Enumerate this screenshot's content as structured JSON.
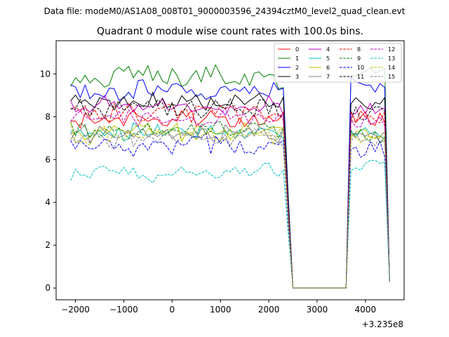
{
  "suptitle": "Data file: modeM0/AS1A08_008T01_9000003596_24394cztM0_level2_quad_clean.evt",
  "chart_data": {
    "type": "line",
    "title": "Quadrant 0 module wise count rates with 100.0s bins.",
    "xlabel": "",
    "ylabel": "",
    "x_offset_label": "+3.235e8",
    "xlim": [
      -2400,
      4800
    ],
    "ylim": [
      -0.55,
      11.55
    ],
    "xticks": [
      -2000,
      -1000,
      0,
      1000,
      2000,
      3000,
      4000
    ],
    "xtick_labels": [
      "−2000",
      "−1000",
      "0",
      "1000",
      "2000",
      "3000",
      "4000"
    ],
    "yticks": [
      0,
      2,
      4,
      6,
      8,
      10
    ],
    "ytick_labels": [
      "0",
      "2",
      "4",
      "6",
      "8",
      "10"
    ],
    "grid": false,
    "legend_position": "top-right",
    "legend_columns": 4,
    "x": {
      "seg1": [
        -2100,
        2300,
        100
      ],
      "drop": [
        2400,
        2500
      ],
      "gap": [
        2500,
        3600
      ],
      "seg2": [
        3700,
        4500,
        100
      ]
    },
    "series": [
      {
        "name": "0",
        "color": "#ff0000",
        "dash": "solid",
        "level": 7.9,
        "amp": 0.4,
        "seed": 0,
        "high": 8.0,
        "drop_mid": 3.5,
        "end": 0.3
      },
      {
        "name": "1",
        "color": "#008000",
        "dash": "solid",
        "level": 9.8,
        "amp": 0.5,
        "seed": 1,
        "high": 10.0,
        "drop_mid": 4.5,
        "end": 0.3
      },
      {
        "name": "2",
        "color": "#0000ff",
        "dash": "solid",
        "level": 9.2,
        "amp": 0.4,
        "seed": 2,
        "high": 9.5,
        "drop_mid": 4.2,
        "end": 0.3
      },
      {
        "name": "3",
        "color": "#000000",
        "dash": "solid",
        "level": 8.7,
        "amp": 0.35,
        "seed": 3,
        "high": 8.6,
        "drop_mid": 4.0,
        "end": 0.3
      },
      {
        "name": "4",
        "color": "#bf00bf",
        "dash": "solid",
        "level": 8.5,
        "amp": 0.35,
        "seed": 4,
        "high": 8.4,
        "drop_mid": 3.8,
        "end": 0.3
      },
      {
        "name": "5",
        "color": "#00bfbf",
        "dash": "solid",
        "level": 7.3,
        "amp": 0.3,
        "seed": 5,
        "high": 7.2,
        "drop_mid": 3.4,
        "end": 0.3
      },
      {
        "name": "6",
        "color": "#bfbf00",
        "dash": "solid",
        "level": 7.3,
        "amp": 0.3,
        "seed": 6,
        "high": 7.2,
        "drop_mid": 3.4,
        "end": 0.3
      },
      {
        "name": "7",
        "color": "#808080",
        "dash": "solid",
        "level": 7.2,
        "amp": 0.3,
        "seed": 7,
        "high": 7.0,
        "drop_mid": 3.3,
        "end": 0.3
      },
      {
        "name": "8",
        "color": "#ff0000",
        "dash": "dashed",
        "level": 8.2,
        "amp": 0.35,
        "seed": 8,
        "high": 8.0,
        "drop_mid": 3.7,
        "end": 0.3
      },
      {
        "name": "9",
        "color": "#008000",
        "dash": "dashed",
        "level": 7.4,
        "amp": 0.35,
        "seed": 9,
        "high": 7.1,
        "drop_mid": 3.4,
        "end": 0.3
      },
      {
        "name": "10",
        "color": "#0000ff",
        "dash": "dashed",
        "level": 6.7,
        "amp": 0.4,
        "seed": 10,
        "high": 6.5,
        "drop_mid": 3.0,
        "end": 0.3
      },
      {
        "name": "11",
        "color": "#000000",
        "dash": "dashed",
        "level": 8.4,
        "amp": 0.35,
        "seed": 11,
        "high": 8.2,
        "drop_mid": 3.8,
        "end": 0.3
      },
      {
        "name": "12",
        "color": "#bf00bf",
        "dash": "dashed",
        "level": 8.0,
        "amp": 0.35,
        "seed": 12,
        "high": 7.8,
        "drop_mid": 3.6,
        "end": 0.3
      },
      {
        "name": "13",
        "color": "#00bfbf",
        "dash": "dashed",
        "level": 5.4,
        "amp": 0.3,
        "seed": 13,
        "high": 5.7,
        "drop_mid": 2.6,
        "end": 0.3
      },
      {
        "name": "14",
        "color": "#bfbf00",
        "dash": "dashed",
        "level": 7.2,
        "amp": 0.4,
        "seed": 14,
        "high": 7.0,
        "drop_mid": 3.3,
        "end": 0.3
      },
      {
        "name": "15",
        "color": "#808080",
        "dash": "dashed",
        "level": 7.0,
        "amp": 0.35,
        "seed": 15,
        "high": 7.0,
        "drop_mid": 3.2,
        "end": 0.3
      }
    ]
  }
}
